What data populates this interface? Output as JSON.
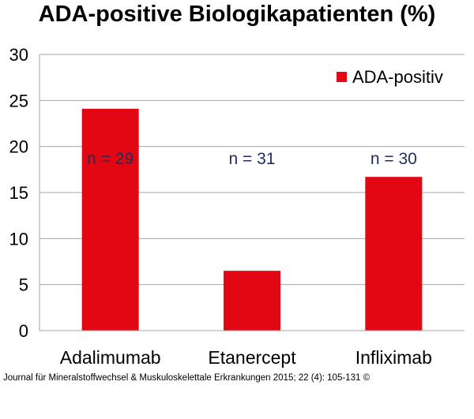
{
  "title": "ADA-positive Biologikapatienten (%)",
  "source": "Journal für Mineralstoffwechsel & Muskuloskelettale Erkrankungen 2015; 22 (4): 105-131 ©",
  "colors": {
    "bar": "#e30613",
    "grid": "#a6a6a6",
    "annotation": "#1f2d5c",
    "text": "#000000"
  },
  "chart_data": {
    "type": "bar",
    "title": "ADA-positive Biologikapatienten (%)",
    "categories": [
      "Adalimumab",
      "Etanercept",
      "Infliximab"
    ],
    "series": [
      {
        "name": "ADA-positiv",
        "values": [
          24.1,
          6.5,
          16.7
        ]
      }
    ],
    "annotations": [
      "n = 29",
      "n = 31",
      "n = 30"
    ],
    "ylim": [
      0,
      30
    ],
    "yticks": [
      "0",
      "5",
      "10",
      "15",
      "20",
      "25",
      "30"
    ],
    "xlabel": "",
    "ylabel": "",
    "grid": true,
    "legend": "top-right"
  }
}
